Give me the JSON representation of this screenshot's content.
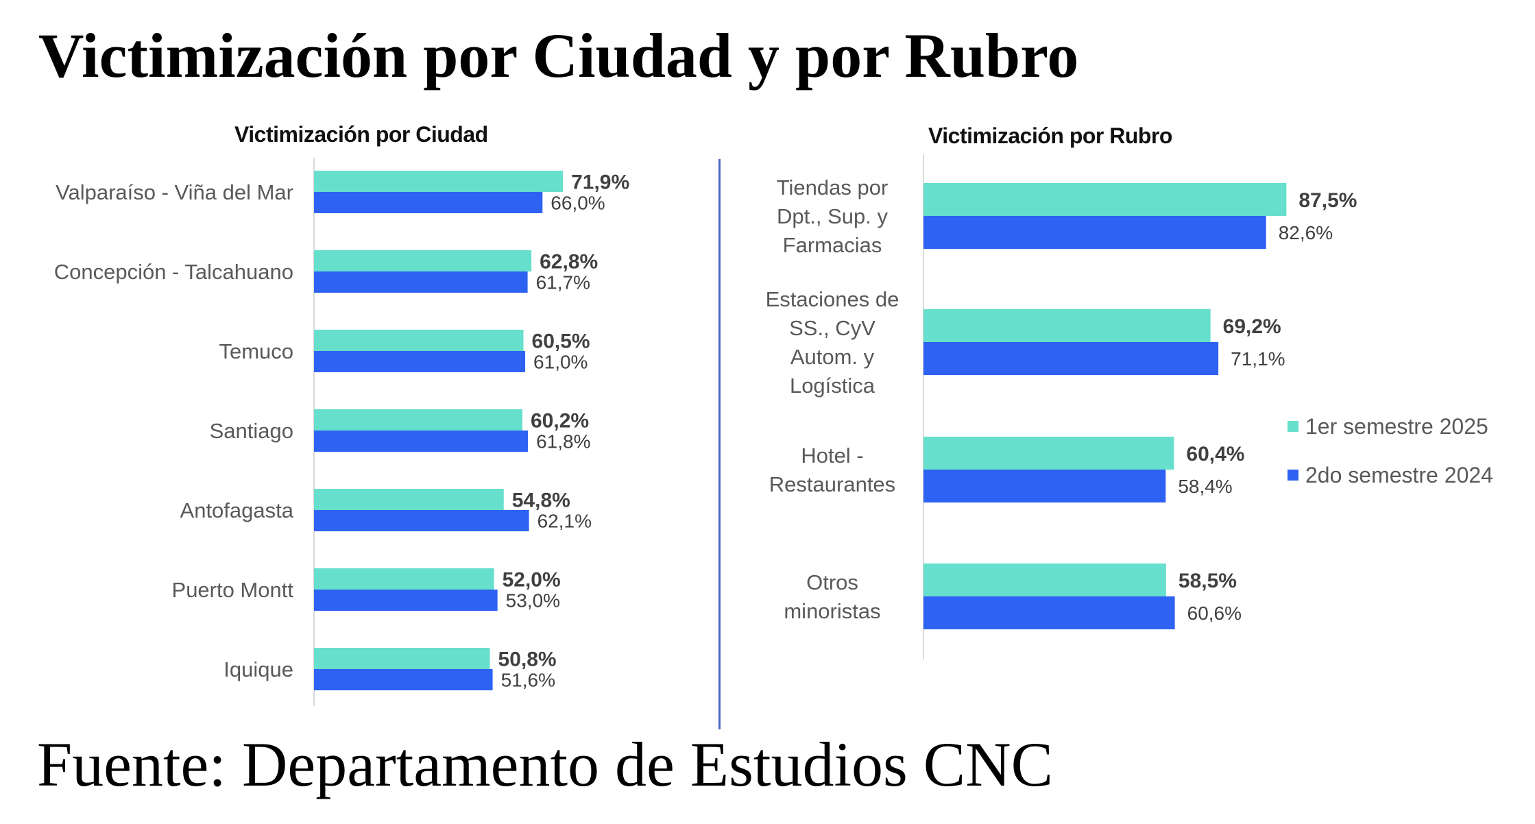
{
  "title": "Victimización por Ciudad y por Rubro",
  "source": "Fuente: Departamento de Estudios CNC",
  "colors": {
    "series1": "#66dfcc",
    "series2": "#2e62f3",
    "divider": "#4a67c8",
    "axis": "#d9d9d9"
  },
  "legend": [
    {
      "label": "1er semestre 2025"
    },
    {
      "label": "2do semestre 2024"
    }
  ],
  "chart_data": [
    {
      "type": "bar",
      "orientation": "horizontal",
      "title": "Victimización por Ciudad",
      "categories": [
        [
          "Valparaíso - Viña del Mar"
        ],
        [
          "Concepción - Talcahuano"
        ],
        [
          "Temuco"
        ],
        [
          "Santiago"
        ],
        [
          "Antofagasta"
        ],
        [
          "Puerto Montt"
        ],
        [
          "Iquique"
        ]
      ],
      "series": [
        {
          "name": "1er semestre 2025",
          "values": [
            71.9,
            62.8,
            60.5,
            60.2,
            54.8,
            52.0,
            50.8
          ],
          "labels": [
            "71,9%",
            "62,8%",
            "60,5%",
            "60,2%",
            "54,8%",
            "52,0%",
            "50,8%"
          ]
        },
        {
          "name": "2do semestre 2024",
          "values": [
            66.0,
            61.7,
            61.0,
            61.8,
            62.1,
            53.0,
            51.6
          ],
          "labels": [
            "66,0%",
            "61,7%",
            "61,0%",
            "61,8%",
            "62,1%",
            "53,0%",
            "51,6%"
          ]
        }
      ],
      "xlim": [
        0,
        100
      ]
    },
    {
      "type": "bar",
      "orientation": "horizontal",
      "title": "Victimización por Rubro",
      "categories": [
        [
          "Tiendas por",
          "Dpt., Sup. y",
          "Farmacias"
        ],
        [
          "Estaciones de",
          "SS., CyV",
          "Autom. y",
          "Logística"
        ],
        [
          "Hotel -",
          "Restaurantes"
        ],
        [
          "Otros",
          "minoristas"
        ]
      ],
      "series": [
        {
          "name": "1er semestre 2025",
          "values": [
            87.5,
            69.2,
            60.4,
            58.5
          ],
          "labels": [
            "87,5%",
            "69,2%",
            "60,4%",
            "58,5%"
          ]
        },
        {
          "name": "2do semestre 2024",
          "values": [
            82.6,
            71.1,
            58.4,
            60.6
          ],
          "labels": [
            "82,6%",
            "71,1%",
            "58,4%",
            "60,6%"
          ]
        }
      ],
      "xlim": [
        0,
        100
      ],
      "legend_position": "right"
    }
  ]
}
